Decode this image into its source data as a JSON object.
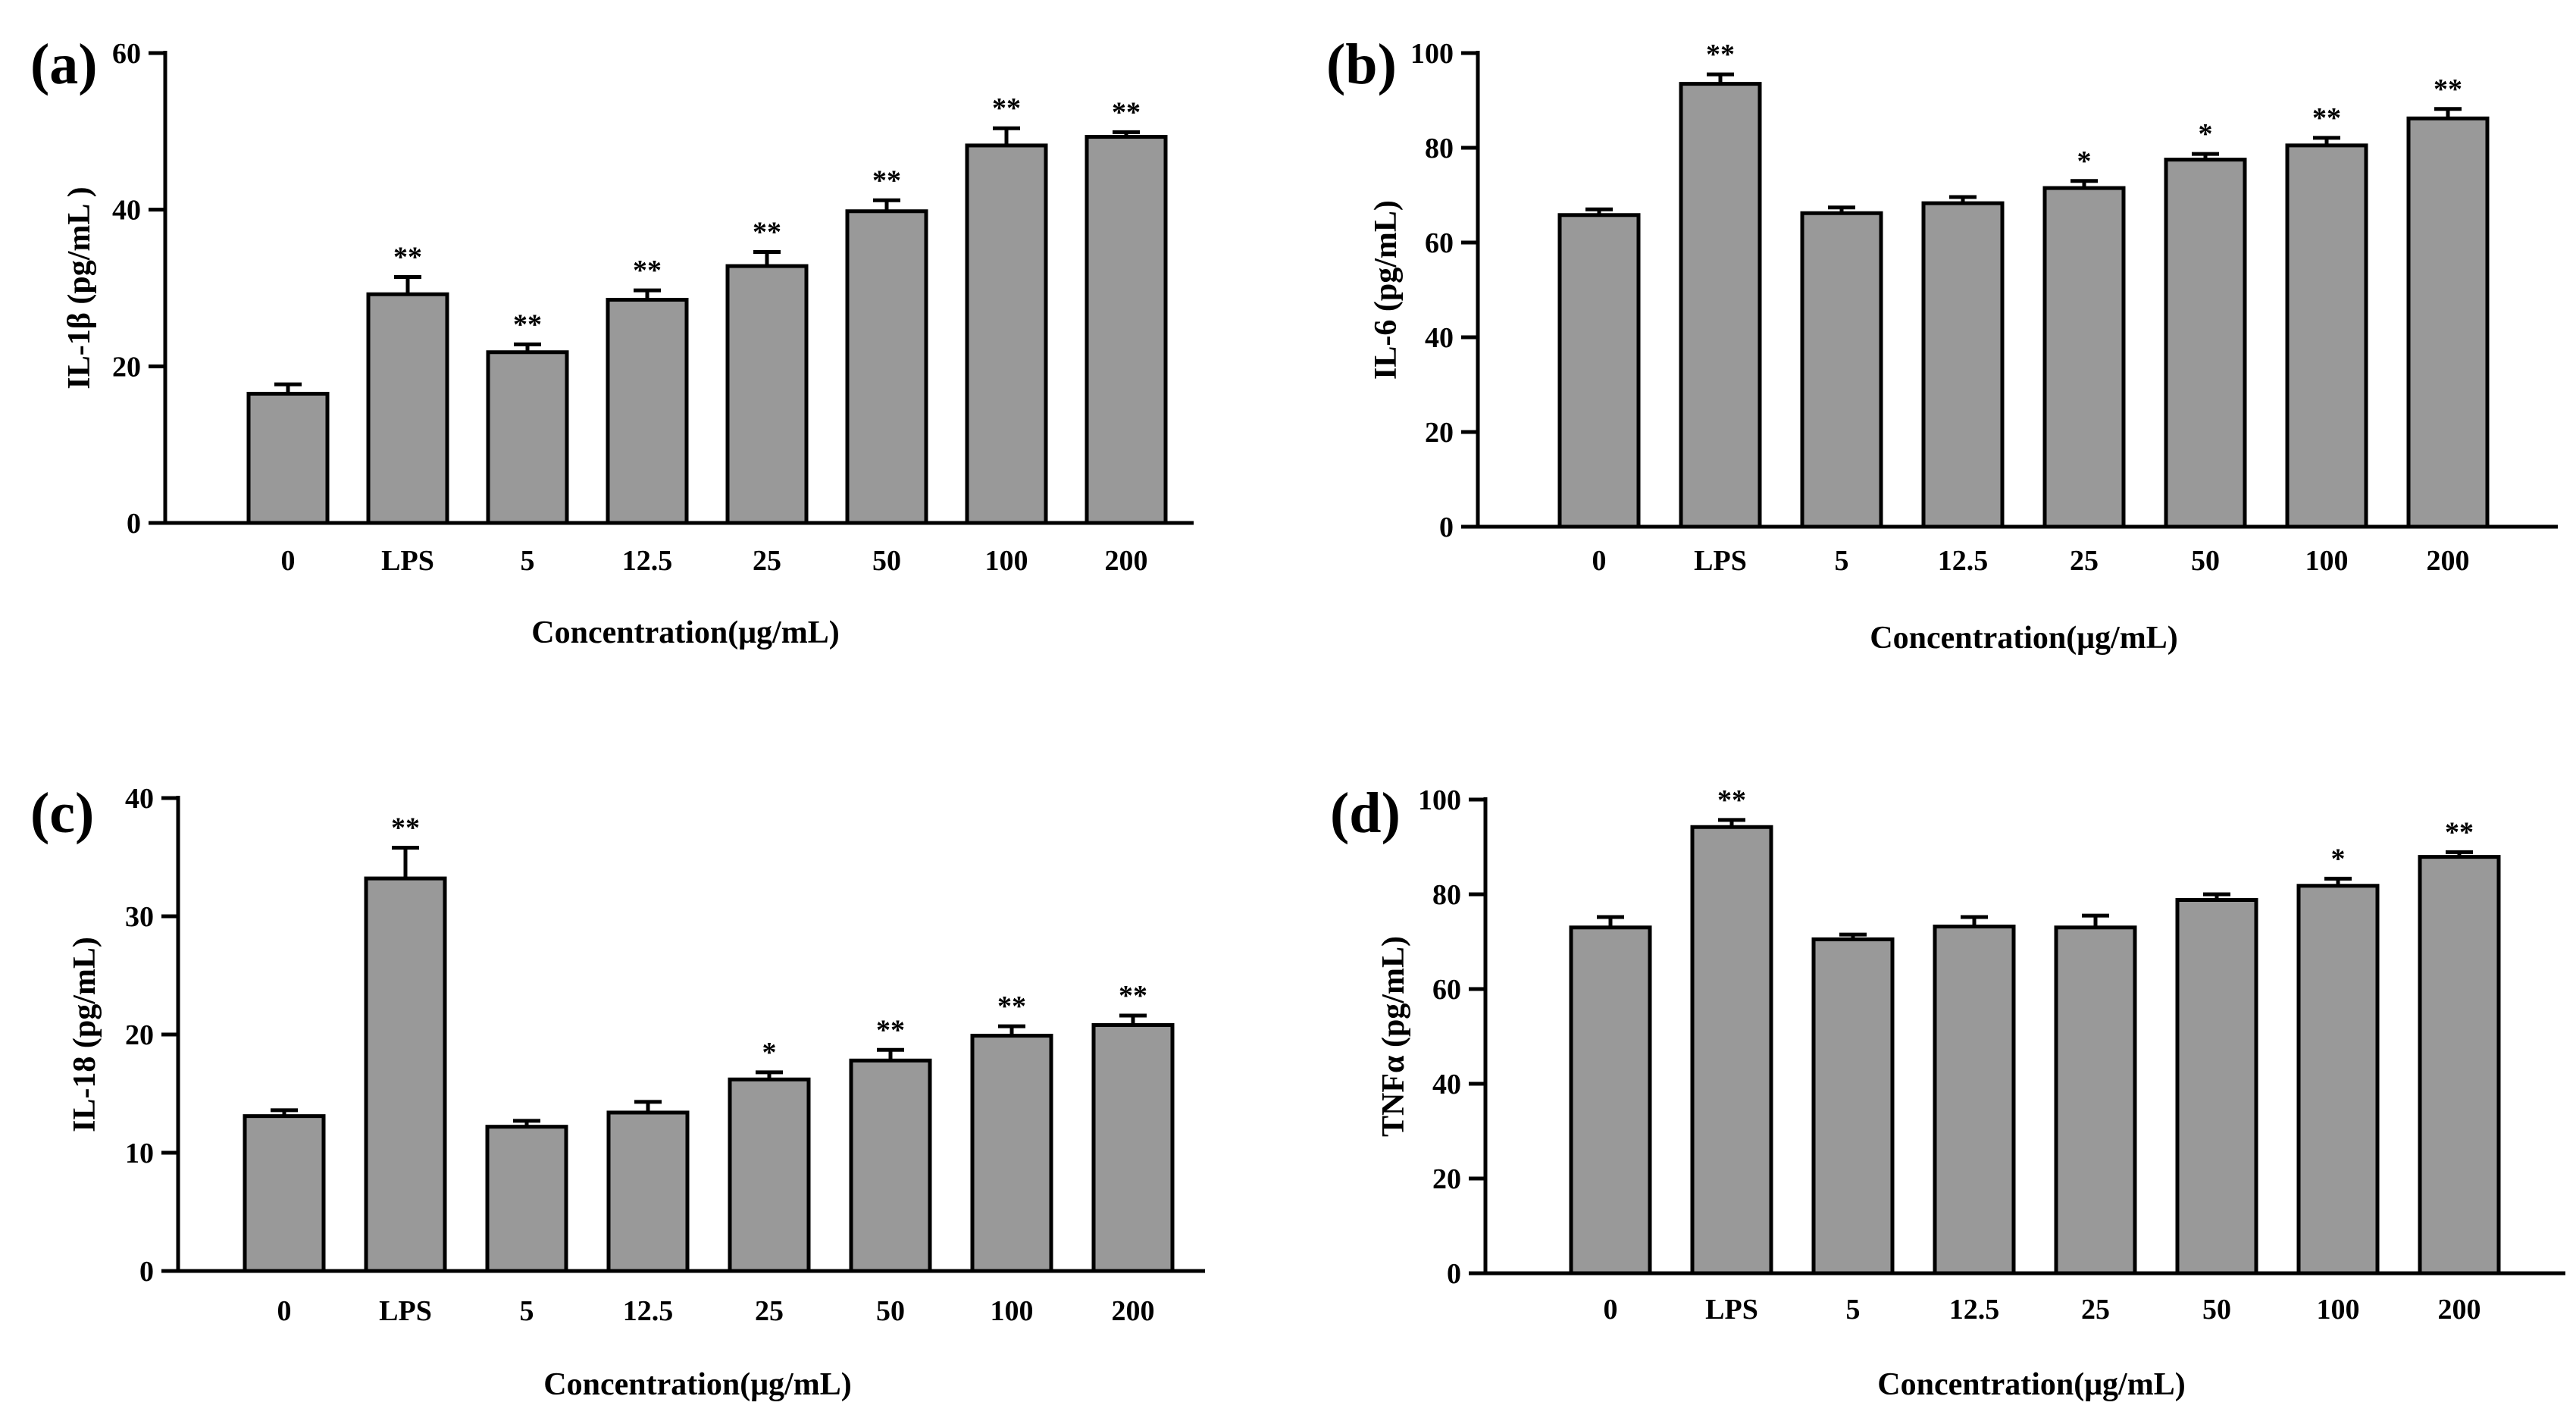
{
  "colors": {
    "bar_fill": "#999999",
    "stroke": "#000000",
    "background": "#ffffff"
  },
  "chart_data": [
    {
      "panel_label": "(a)",
      "type": "bar",
      "title": "",
      "xlabel": "Concentration(μg/mL)",
      "ylabel": "IL-1β (pg/mL )",
      "ylim": [
        0,
        60
      ],
      "yticks": [
        0,
        20,
        40,
        60
      ],
      "categories": [
        "0",
        "LPS",
        "5",
        "12.5",
        "25",
        "50",
        "100",
        "200"
      ],
      "values": [
        16.5,
        29.2,
        21.8,
        28.5,
        32.8,
        39.8,
        48.2,
        49.3
      ],
      "errors": [
        1.2,
        2.2,
        1.0,
        1.2,
        1.8,
        1.4,
        2.2,
        0.6
      ],
      "significance": [
        "",
        "**",
        "**",
        "**",
        "**",
        "**",
        "**",
        "**"
      ],
      "grid": false
    },
    {
      "panel_label": "(b)",
      "type": "bar",
      "title": "",
      "xlabel": "Concentration(μg/mL)",
      "ylabel": "IL-6 (pg/mL)",
      "ylim": [
        0,
        100
      ],
      "yticks": [
        0,
        20,
        40,
        60,
        80,
        100
      ],
      "categories": [
        "0",
        "LPS",
        "5",
        "12.5",
        "25",
        "50",
        "100",
        "200"
      ],
      "values": [
        65.8,
        93.5,
        66.2,
        68.3,
        71.5,
        77.5,
        80.5,
        86.2
      ],
      "errors": [
        1.2,
        2.0,
        1.2,
        1.3,
        1.5,
        1.2,
        1.6,
        2.0
      ],
      "significance": [
        "",
        "**",
        "",
        "",
        "*",
        "*",
        "**",
        "**"
      ],
      "grid": false
    },
    {
      "panel_label": "(c)",
      "type": "bar",
      "title": "",
      "xlabel": "Concentration(μg/mL)",
      "ylabel": "IL-18 (pg/mL)",
      "ylim": [
        0,
        40
      ],
      "yticks": [
        0,
        10,
        20,
        30,
        40
      ],
      "categories": [
        "0",
        "LPS",
        "5",
        "12.5",
        "25",
        "50",
        "100",
        "200"
      ],
      "values": [
        13.1,
        33.2,
        12.2,
        13.4,
        16.2,
        17.8,
        19.9,
        20.8
      ],
      "errors": [
        0.5,
        2.6,
        0.5,
        0.9,
        0.6,
        0.9,
        0.8,
        0.8
      ],
      "significance": [
        "",
        "**",
        "",
        "",
        "*",
        "**",
        "**",
        "**"
      ],
      "grid": false
    },
    {
      "panel_label": "(d)",
      "type": "bar",
      "title": "",
      "xlabel": "Concentration(μg/mL)",
      "ylabel": "TNFα (pg/mL)",
      "ylim": [
        0,
        100
      ],
      "yticks": [
        0,
        20,
        40,
        60,
        80,
        100
      ],
      "categories": [
        "0",
        "LPS",
        "5",
        "12.5",
        "25",
        "50",
        "100",
        "200"
      ],
      "values": [
        73.0,
        94.2,
        70.5,
        73.2,
        73.0,
        78.8,
        81.8,
        87.9
      ],
      "errors": [
        2.2,
        1.5,
        1.0,
        2.0,
        2.5,
        1.2,
        1.5,
        1.0
      ],
      "significance": [
        "",
        "**",
        "",
        "",
        "",
        "",
        "*",
        "**"
      ],
      "grid": false
    }
  ]
}
